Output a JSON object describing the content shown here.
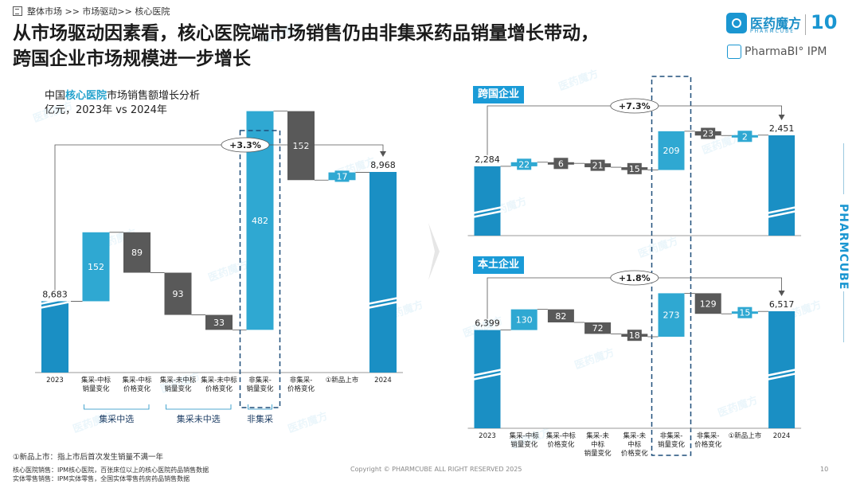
{
  "breadcrumb": {
    "path": "整体市场  >>  市场驱动>>  核心医院"
  },
  "header": {
    "title_line1": "从市场驱动因素看，核心医院端市场销售仍由非集采药品销量增长带动，",
    "title_line2": "跨国企业市场规模进一步增长",
    "logo_text": "医药魔方",
    "logo_sub": "PHARMCUBE",
    "logo_badge": "10",
    "product_label": "PharmaBI° IPM"
  },
  "side_brand": "PHARMCUBE",
  "watermark_text": "医药魔方",
  "colors": {
    "accent": "#1a9bd7",
    "gray_bar": "#595959",
    "light_bar": "#2fa8d2"
  },
  "chart_data": [
    {
      "type": "waterfall",
      "id": "main",
      "title_prefix": "中国",
      "title_highlight": "核心医院",
      "title_suffix": "市场销售额增长分析",
      "subtitle": "亿元，2023年 vs 2024年",
      "growth_label": "+3.3%",
      "categories": [
        "2023",
        "集采-中标\n销量变化",
        "集采-中标\n价格变化",
        "集采-未中标\n销量变化",
        "集采-未中标\n价格变化",
        "非集采-\n销量变化",
        "非集采-\n价格变化",
        "①新品上市",
        "2024"
      ],
      "values": [
        8683,
        152,
        -89,
        -93,
        -33,
        482,
        -152,
        17,
        8968
      ],
      "labels": [
        "8,683",
        "152",
        "89",
        "93",
        "33",
        "482",
        "152",
        "17",
        "8,968"
      ],
      "kinds": [
        "total",
        "pos",
        "neg",
        "neg",
        "neg",
        "pos",
        "neg",
        "pos",
        "total"
      ],
      "groups": [
        {
          "label": "集采中选",
          "from": 1,
          "to": 2
        },
        {
          "label": "集采未中选",
          "from": 3,
          "to": 4
        },
        {
          "label": "非集采",
          "from": 5,
          "to": 5
        }
      ],
      "highlight_index": 5
    },
    {
      "type": "waterfall",
      "id": "mnc",
      "title": "跨国企业",
      "growth_label": "+7.3%",
      "values": [
        2284,
        22,
        -6,
        -21,
        -15,
        209,
        -23,
        2,
        2451
      ],
      "labels": [
        "2,284",
        "22",
        "6",
        "21",
        "15",
        "209",
        "23",
        "2",
        "2,451"
      ],
      "kinds": [
        "total",
        "pos",
        "neg",
        "neg",
        "neg",
        "pos",
        "neg",
        "pos",
        "total"
      ],
      "highlight_index": 5
    },
    {
      "type": "waterfall",
      "id": "local",
      "title": "本土企业",
      "growth_label": "+1.8%",
      "categories": [
        "2023",
        "集采-中标\n销量变化",
        "集采-中标\n价格变化",
        "集采-未\n中标\n销量变化",
        "集采-未\n中标\n价格变化",
        "非集采-\n销量变化",
        "非集采-\n价格变化",
        "①新品上市",
        "2024"
      ],
      "values": [
        6399,
        130,
        -82,
        -72,
        -18,
        273,
        -129,
        15,
        6517
      ],
      "labels": [
        "6,399",
        "130",
        "82",
        "72",
        "18",
        "273",
        "129",
        "15",
        "6,517"
      ],
      "kinds": [
        "total",
        "pos",
        "neg",
        "neg",
        "neg",
        "pos",
        "neg",
        "pos",
        "total"
      ],
      "highlight_index": 5
    }
  ],
  "footnotes": {
    "note1": "①新品上市：指上市后首次发生销量不满一年",
    "note2": "核心医院销售：IPM核心医院，百张床位以上的核心医院药品销售数据",
    "note3": "实体零售销售：IPM实体零售，全国实体零售药房药品销售数据"
  },
  "copyright": "Copyright © PHARMCUBE ALL RIGHT RESERVED 2025",
  "page_number": "10"
}
